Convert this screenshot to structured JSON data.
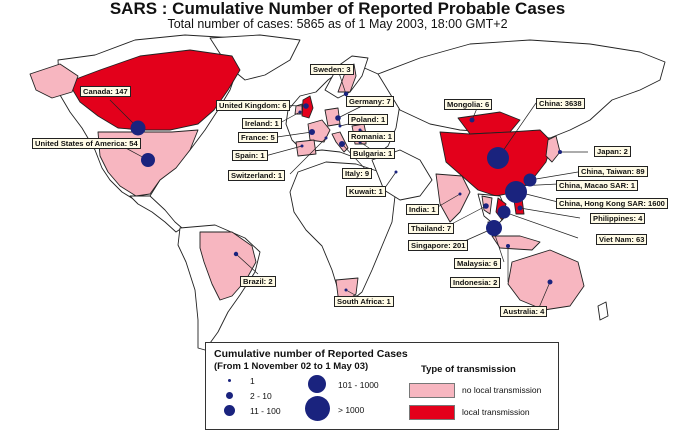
{
  "title": "SARS : Cumulative Number of Reported Probable Cases",
  "subtitle": "Total number of cases: 5865 as of 1 May 2003, 18:00 GMT+2",
  "colors": {
    "no_local": "#f7b6c0",
    "local": "#e3001b",
    "bubble": "#1a237e",
    "land": "#ffffff",
    "border": "#222222",
    "label_bg": "#fffbe6"
  },
  "countries": [
    {
      "label": "Canada: 147",
      "status": "local",
      "cases": 147
    },
    {
      "label": "United States of America: 54",
      "status": "no_local",
      "cases": 54
    },
    {
      "label": "Brazil: 2",
      "status": "no_local",
      "cases": 2
    },
    {
      "label": "Sweden: 3",
      "status": "no_local",
      "cases": 3
    },
    {
      "label": "United Kingdom: 6",
      "status": "local",
      "cases": 6
    },
    {
      "label": "Ireland: 1",
      "status": "no_local",
      "cases": 1
    },
    {
      "label": "France: 5",
      "status": "no_local",
      "cases": 5
    },
    {
      "label": "Spain: 1",
      "status": "no_local",
      "cases": 1
    },
    {
      "label": "Switzerland: 1",
      "status": "no_local",
      "cases": 1
    },
    {
      "label": "Germany: 7",
      "status": "no_local",
      "cases": 7
    },
    {
      "label": "Poland: 1",
      "status": "no_local",
      "cases": 1
    },
    {
      "label": "Romania: 1",
      "status": "no_local",
      "cases": 1
    },
    {
      "label": "Bulgaria: 1",
      "status": "no_local",
      "cases": 1
    },
    {
      "label": "Italy: 9",
      "status": "no_local",
      "cases": 9
    },
    {
      "label": "Kuwait: 1",
      "status": "no_local",
      "cases": 1
    },
    {
      "label": "South Africa: 1",
      "status": "no_local",
      "cases": 1
    },
    {
      "label": "Mongolia: 6",
      "status": "local",
      "cases": 6
    },
    {
      "label": "China: 3638",
      "status": "local",
      "cases": 3638
    },
    {
      "label": "Japan: 2",
      "status": "no_local",
      "cases": 2
    },
    {
      "label": "China, Taiwan: 89",
      "status": "local",
      "cases": 89
    },
    {
      "label": "China, Macao SAR: 1",
      "status": "no_local",
      "cases": 1
    },
    {
      "label": "China, Hong Kong SAR: 1600",
      "status": "local",
      "cases": 1600
    },
    {
      "label": "India: 1",
      "status": "no_local",
      "cases": 1
    },
    {
      "label": "Thailand: 7",
      "status": "no_local",
      "cases": 7
    },
    {
      "label": "Singapore: 201",
      "status": "local",
      "cases": 201
    },
    {
      "label": "Philippines: 4",
      "status": "local",
      "cases": 4
    },
    {
      "label": "Viet Nam: 63",
      "status": "local",
      "cases": 63
    },
    {
      "label": "Malaysia: 6",
      "status": "no_local",
      "cases": 6
    },
    {
      "label": "Indonesia: 2",
      "status": "no_local",
      "cases": 2
    },
    {
      "label": "Australia: 4",
      "status": "no_local",
      "cases": 4
    }
  ],
  "legend": {
    "title": "Cumulative number of Reported Cases",
    "subtitle": "(From 1 November 02 to 1 May 03)",
    "size_classes": [
      "1",
      "2 - 10",
      "11 - 100",
      "101 - 1000",
      "> 1000"
    ],
    "transmission_title": "Type of transmission",
    "no_local": "no local transmission",
    "local": "local transmission"
  }
}
